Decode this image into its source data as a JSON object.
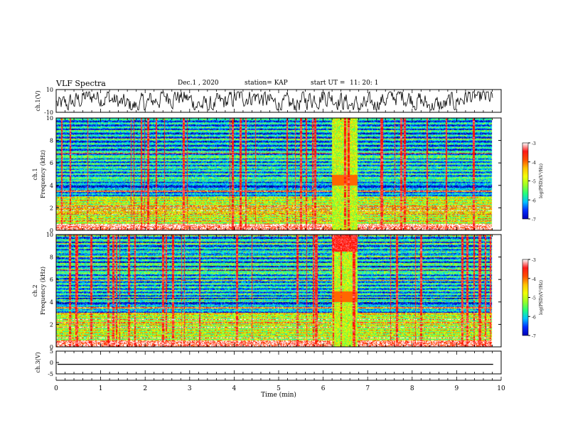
{
  "header": {
    "title": "VLF Spectra",
    "date": "Dec.1 , 2020",
    "station": "station= KAP",
    "start_label": "start  UT  =",
    "start_time": "11: 20: 1"
  },
  "colors": {
    "colormap": [
      "#00007a",
      "#0000ff",
      "#0080ff",
      "#00e0ff",
      "#20ff80",
      "#a0ff20",
      "#ffff00",
      "#ff8000",
      "#ff0000",
      "#ffffff"
    ]
  },
  "chart_data": [
    {
      "type": "line",
      "panel": "ch1-waveform",
      "ylabel": "ch.1(V)",
      "ylim": [
        -10,
        10
      ],
      "yticks": [
        "10",
        "-10"
      ],
      "xlim": [
        0,
        10
      ],
      "series": [
        {
          "description": "noisy waveform oscillating about 0 V, roughly -8 to +8 V",
          "range": [
            -8,
            8
          ]
        }
      ]
    },
    {
      "type": "heatmap",
      "panel": "ch1-spectrogram",
      "ylabel": "ch.1",
      "ylabel2": "Frequency (kHz)",
      "xlim": [
        0,
        10
      ],
      "ylim": [
        0,
        10
      ],
      "yticks": [
        "0",
        "2",
        "4",
        "6",
        "8",
        "10"
      ],
      "colorbar": {
        "label": "log(PSD)(V²/Hz)",
        "range": [
          -7,
          -3
        ],
        "ticks": [
          "-3",
          "-4",
          "-5",
          "-6",
          "-7"
        ]
      },
      "data_end_min": 9.8,
      "features": [
        {
          "type": "broadband-burst",
          "t_start": 6.2,
          "t_end": 6.75
        },
        {
          "type": "low-frequency-background",
          "freq_range_khz": [
            0,
            3
          ],
          "level": -4.5
        },
        {
          "type": "impulsive-events",
          "count": 36
        }
      ]
    },
    {
      "type": "heatmap",
      "panel": "ch2-spectrogram",
      "ylabel": "ch.2",
      "ylabel2": "Frequency (kHz)",
      "xlim": [
        0,
        10
      ],
      "ylim": [
        0,
        10
      ],
      "yticks": [
        "0",
        "2",
        "4",
        "6",
        "8",
        "10"
      ],
      "colorbar": {
        "label": "log(PSD)(V²/Hz)",
        "range": [
          -7,
          -3
        ],
        "ticks": [
          "-3",
          "-4",
          "-5",
          "-6",
          "-7"
        ]
      },
      "data_end_min": 9.8,
      "features": [
        {
          "type": "broadband-burst",
          "t_start": 6.2,
          "t_end": 6.75
        },
        {
          "type": "low-frequency-background",
          "freq_range_khz": [
            0,
            3
          ],
          "level": -4.5
        },
        {
          "type": "impulsive-events",
          "count": 40
        }
      ]
    },
    {
      "type": "line",
      "panel": "ch3-waveform",
      "ylabel": "ch.3(V)",
      "ylim": [
        -5,
        5
      ],
      "yticks": [
        "5",
        "0",
        "-5"
      ],
      "xlim": [
        0,
        10
      ],
      "series": [
        {
          "description": "flat band near -0.8 V",
          "range": [
            -1.0,
            -0.6
          ]
        }
      ]
    }
  ],
  "xaxis": {
    "label": "Time (min)",
    "ticks": [
      "0",
      "1",
      "2",
      "3",
      "4",
      "5",
      "6",
      "7",
      "8",
      "9",
      "10"
    ]
  }
}
